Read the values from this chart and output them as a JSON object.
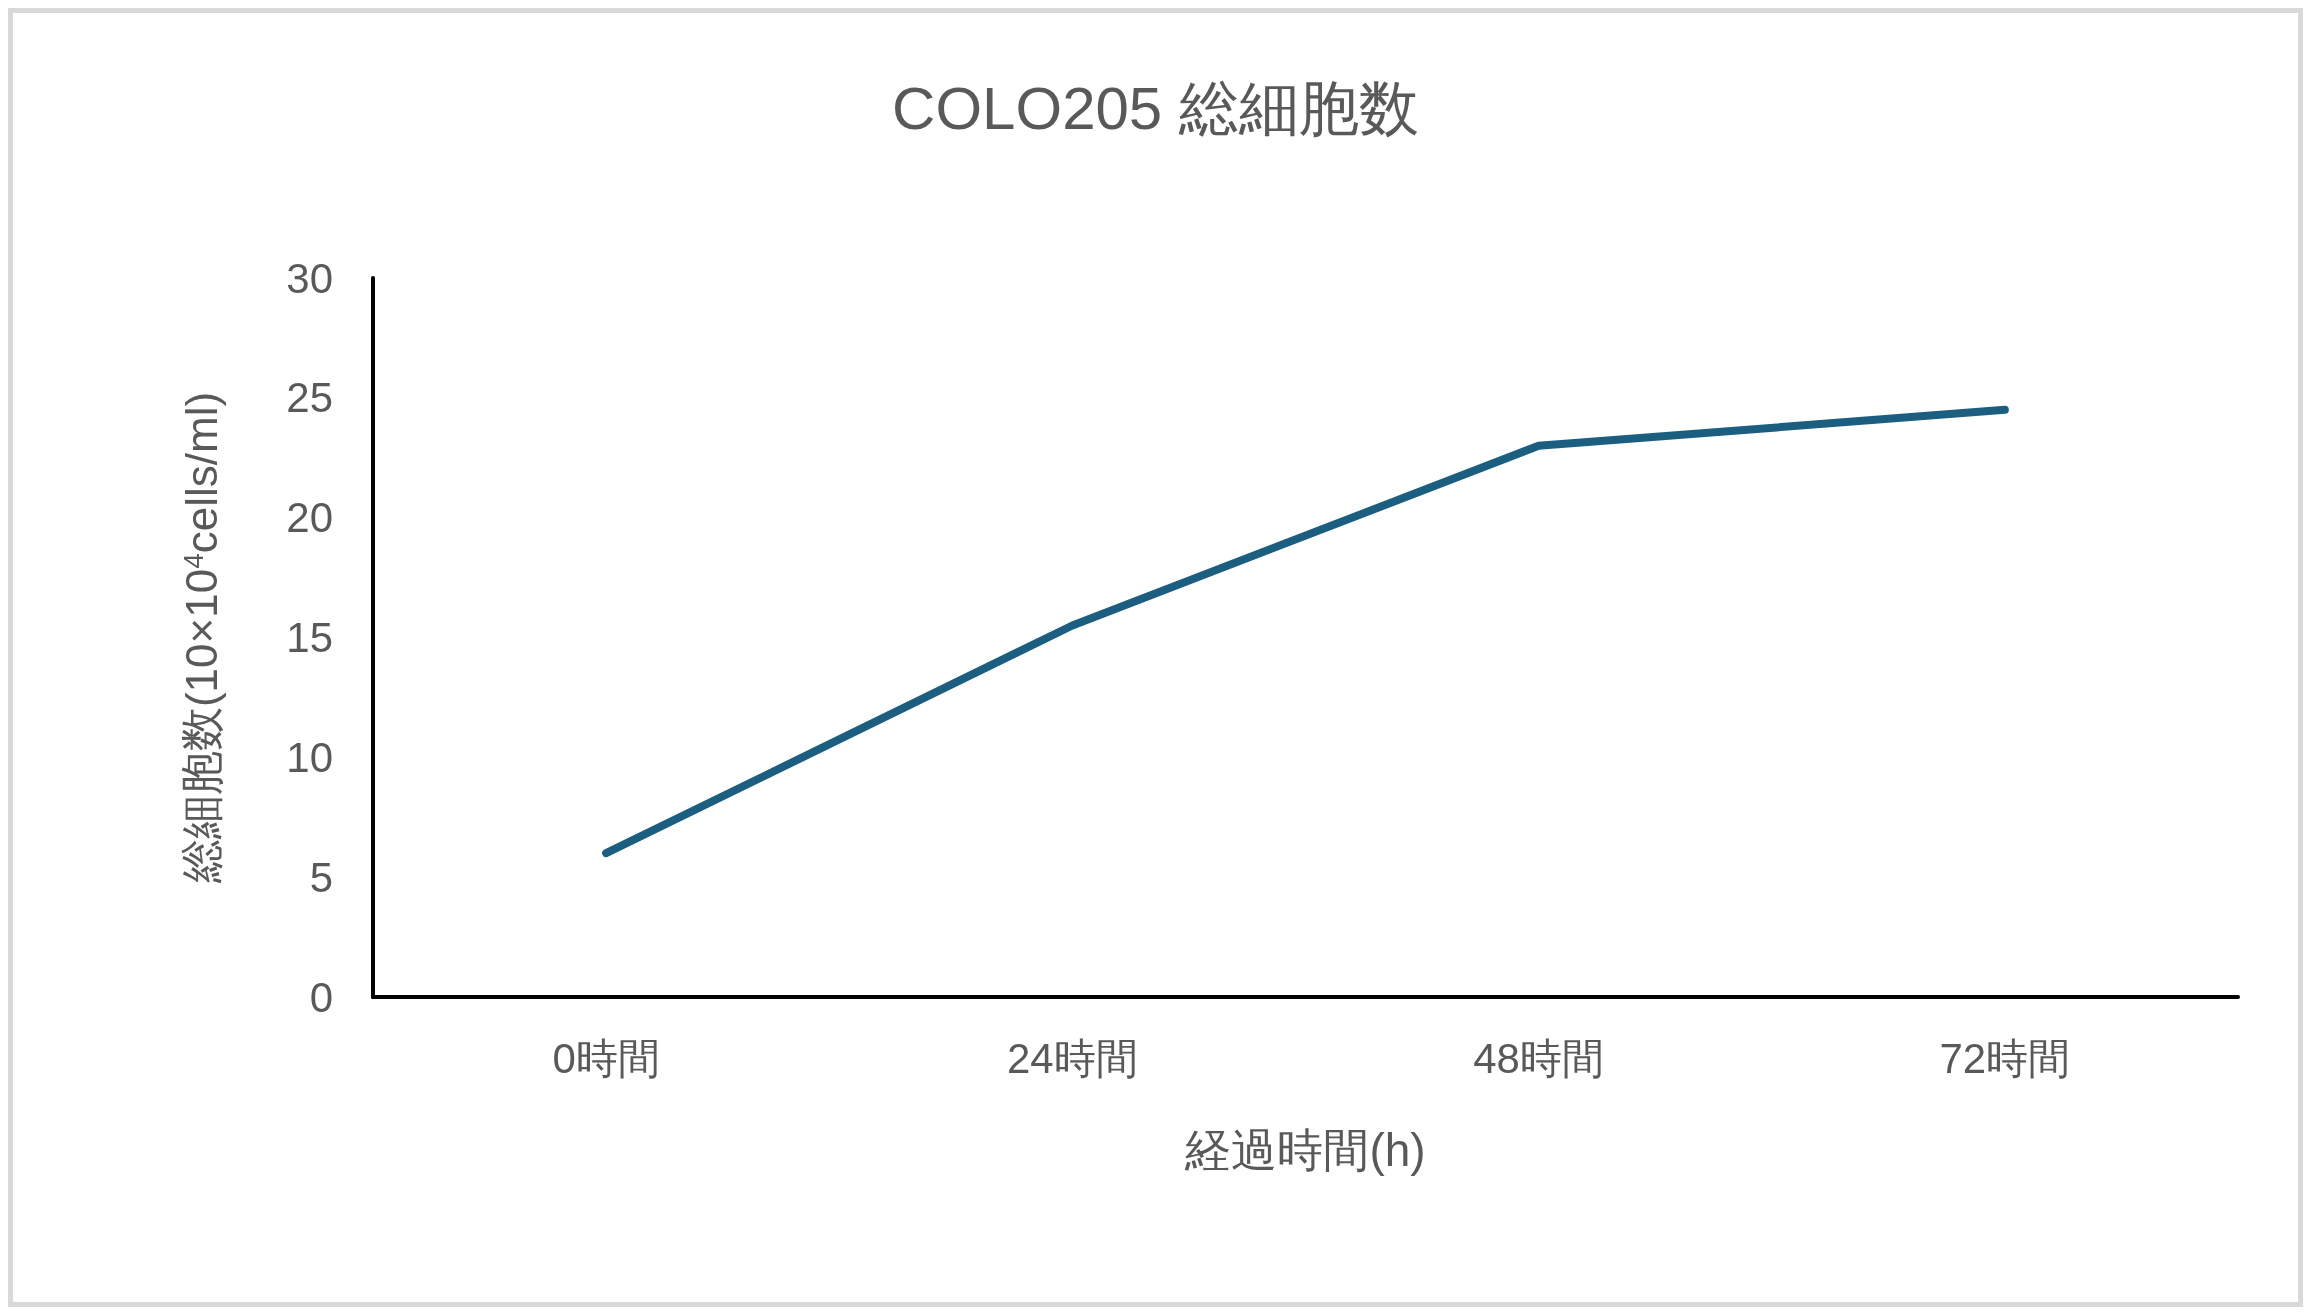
{
  "chart_data": {
    "type": "line",
    "title": "COLO205 総細胞数",
    "xlabel": "経過時間(h)",
    "ylabel": "総細胞数(10×10$^{4}$cells/ml)",
    "categories": [
      "0時間",
      "24時間",
      "48時間",
      "72時間"
    ],
    "series": [
      {
        "color": "#1b5e7f",
        "values": [
          6.0,
          15.5,
          23.0,
          24.5
        ]
      }
    ],
    "ylim": [
      0,
      30
    ],
    "yticks": [
      0,
      5,
      10,
      15,
      20,
      25,
      30
    ],
    "grid": false,
    "marker": "none",
    "line_style": "solid"
  }
}
